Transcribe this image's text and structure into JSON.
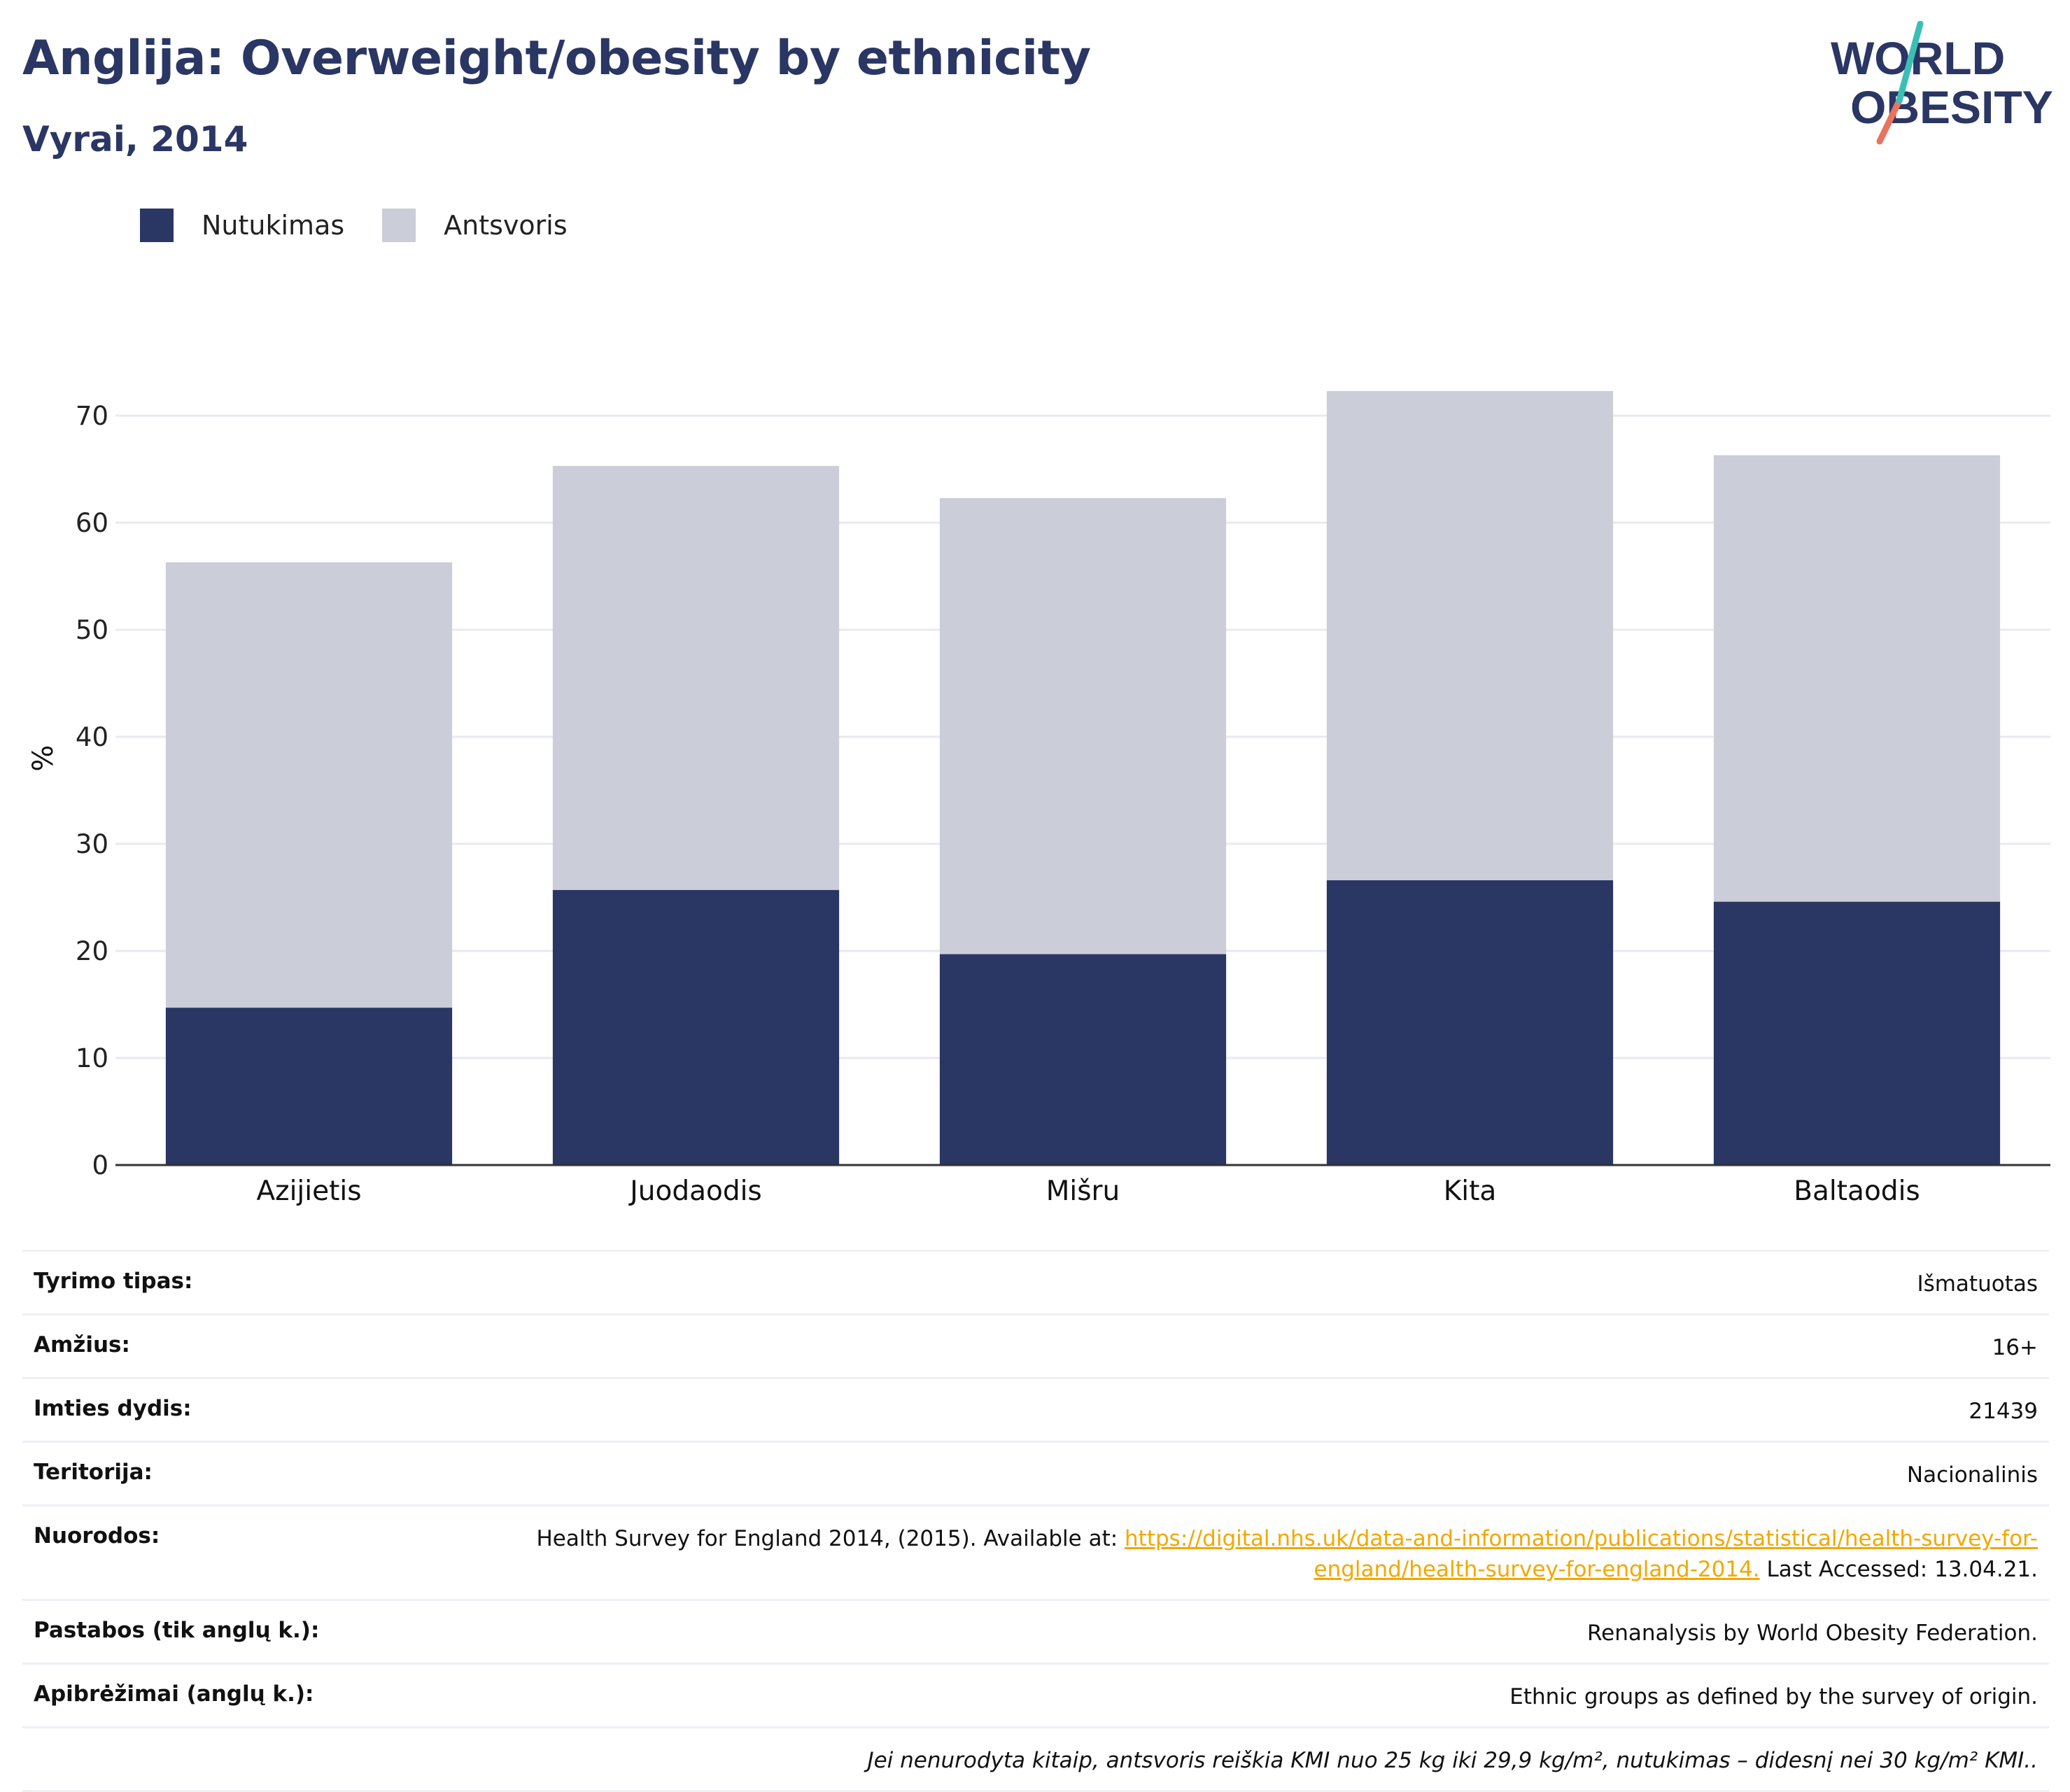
{
  "title": "Anglija: Overweight/obesity by ethnicity",
  "subtitle": "Vyrai, 2014",
  "logo": {
    "line1": "WORLD",
    "line2": "OBESITY"
  },
  "colors": {
    "obesity": "#2a3663",
    "overweight": "#cbcdd8",
    "title": "#2a3663",
    "link": "#f2a800",
    "logo_teal": "#3bbfb5",
    "logo_coral": "#e8735f"
  },
  "legend": [
    {
      "label": "Nutukimas",
      "color": "#2a3663"
    },
    {
      "label": "Antsvoris",
      "color": "#cbcdd8"
    }
  ],
  "chart_data": {
    "type": "bar",
    "stacked": true,
    "categories": [
      "Azijietis",
      "Juodaodis",
      "Mišru",
      "Kita",
      "Baltaodis"
    ],
    "series": [
      {
        "name": "Nutukimas",
        "values": [
          14.7,
          25.7,
          19.7,
          26.6,
          24.6
        ]
      },
      {
        "name": "Antsvoris",
        "values": [
          41.6,
          39.6,
          42.6,
          45.7,
          41.7
        ]
      }
    ],
    "ylabel": "%",
    "ylim": [
      0,
      76
    ],
    "yticks": [
      0,
      10,
      20,
      30,
      40,
      50,
      60,
      70
    ],
    "grid": true,
    "legend_position": "top-left"
  },
  "info": {
    "survey_type": {
      "label": "Tyrimo tipas:",
      "value": "Išmatuotas"
    },
    "age": {
      "label": "Amžius:",
      "value": "16+"
    },
    "sample": {
      "label": "Imties dydis:",
      "value": "21439"
    },
    "territory": {
      "label": "Teritorija:",
      "value": "Nacionalinis"
    },
    "references": {
      "label": "Nuorodos:",
      "text_before": "Health Survey for England 2014, (2015). Available at: ",
      "link": "https://digital.nhs.uk/data-and-information/publications/statistical/health-survey-for-england/health-survey-for-england-2014.",
      "text_after": " Last Accessed: 13.04.21."
    },
    "notes": {
      "label": "Pastabos (tik anglų k.):",
      "value": "Renanalysis by World Obesity Federation."
    },
    "definitions": {
      "label": "Apibrėžimai (anglų k.):",
      "value": "Ethnic groups as defined by the survey of origin."
    },
    "footnote": "Jei nenurodyta kitaip, antsvoris reiškia KMI nuo 25 kg iki 29,9 kg/m², nutukimas – didesnį nei 30 kg/m² KMI.."
  }
}
